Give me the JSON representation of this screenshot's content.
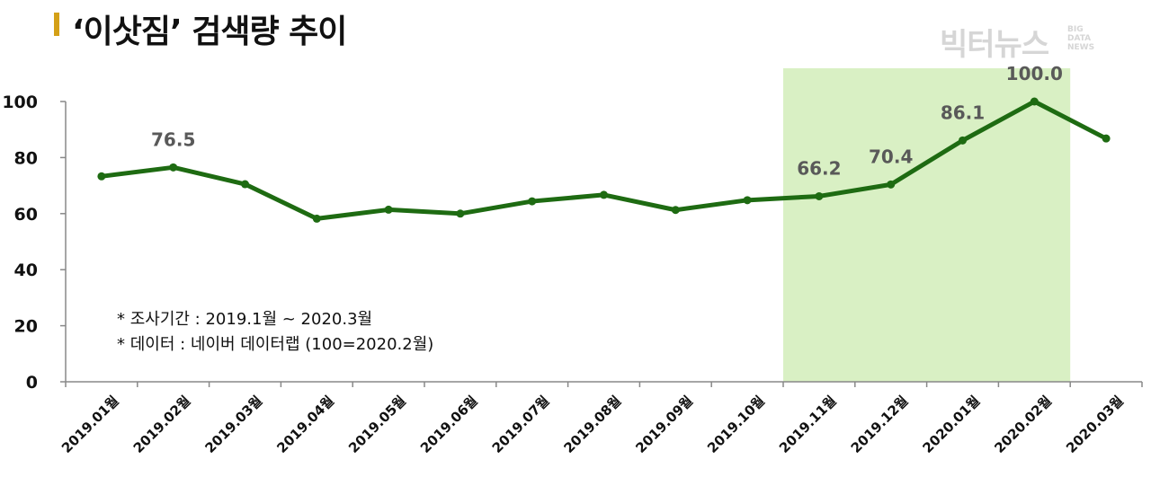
{
  "title": "‘이삿짐’ 검색량 추이",
  "logo": {
    "main": "빅터뉴스",
    "sub": [
      "BIG",
      "DATA",
      "NEWS"
    ]
  },
  "colors": {
    "line": "#1e6b12",
    "highlight": "#d9f0c4",
    "title_bar": "#d4a017",
    "data_label": "#595959"
  },
  "notes": [
    "*  조사기간 : 2019.1월  ~  2020.3월",
    "*  데이터 : 네이버 데이터랩 (100=2020.2월)"
  ],
  "chart_data": {
    "type": "line",
    "title": "‘이삿짐’ 검색량 추이",
    "categories": [
      "2019.01월",
      "2019.02월",
      "2019.03월",
      "2019.04월",
      "2019.05월",
      "2019.06월",
      "2019.07월",
      "2019.08월",
      "2019.09월",
      "2019.10월",
      "2019.11월",
      "2019.12월",
      "2020.01월",
      "2020.02월",
      "2020.03월"
    ],
    "values": [
      73.3,
      76.5,
      70.5,
      58.2,
      61.4,
      60.0,
      64.4,
      66.7,
      61.3,
      64.8,
      66.2,
      70.4,
      86.1,
      100.0,
      86.8
    ],
    "data_labels": [
      {
        "index": 1,
        "text": "76.5"
      },
      {
        "index": 10,
        "text": "66.2"
      },
      {
        "index": 11,
        "text": "70.4"
      },
      {
        "index": 12,
        "text": "86.1"
      },
      {
        "index": 13,
        "text": "100.0"
      }
    ],
    "ylim": [
      0,
      100
    ],
    "yticks": [
      0,
      20,
      40,
      60,
      80,
      100
    ],
    "grid": false,
    "highlight_range": [
      "2019.11월",
      "2020.02월"
    ]
  }
}
